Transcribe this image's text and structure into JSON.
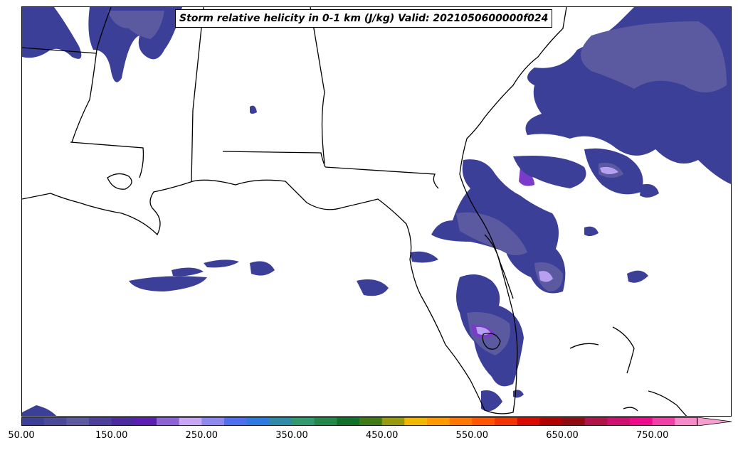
{
  "title": "Storm relative helicity in 0-1 km (J/kg) Valid: 2021050600000f024",
  "colorbar": {
    "min": 50,
    "max": 800,
    "step": 25,
    "extend": "max",
    "tick_labels": [
      "50.00",
      "150.00",
      "250.00",
      "350.00",
      "450.00",
      "550.00",
      "650.00",
      "750.00"
    ],
    "colors": [
      "#3b3f98",
      "#4b4a9a",
      "#5c5b9f",
      "#4c409c",
      "#4a2a9e",
      "#5a1fb0",
      "#8e63d6",
      "#c9a6f3",
      "#8d87f0",
      "#4f6ef0",
      "#2e7ae0",
      "#2f8aa8",
      "#2f9a6e",
      "#23884a",
      "#11702a",
      "#3f7a12",
      "#9a9a0e",
      "#f0b800",
      "#ff9a00",
      "#ff7600",
      "#ff5400",
      "#f23500",
      "#d90a00",
      "#b00000",
      "#900a12",
      "#b0124a",
      "#d01070",
      "#ee0a8c",
      "#f040a8",
      "#f78ac8"
    ],
    "extend_color": "#f7a0d0"
  },
  "fields": {
    "base_color": "#3b3f98",
    "mid_color": "#5b5aa0",
    "core_color": "#7a3cc8",
    "peak_color": "#b7a0f2"
  }
}
